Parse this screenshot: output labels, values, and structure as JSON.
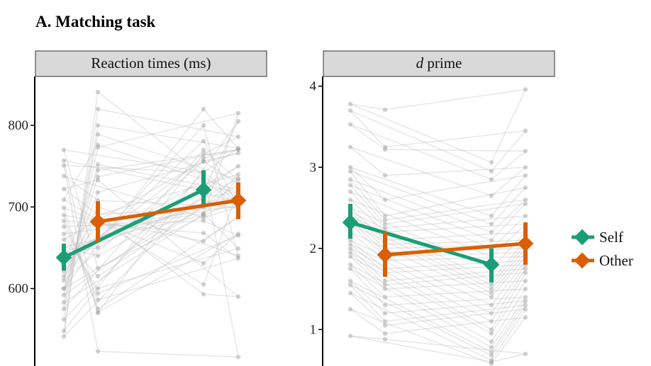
{
  "figure": {
    "title": "A. Matching task"
  },
  "colors": {
    "self": "#1b9e77",
    "other": "#d95f02",
    "individual_lines": "#bdbdbd",
    "individual_points": "#9e9e9e",
    "strip_fill": "#d9d9d9"
  },
  "legend": {
    "items": [
      {
        "label": "Self",
        "color": "#1b9e77"
      },
      {
        "label": "Other",
        "color": "#d95f02"
      }
    ]
  },
  "chart_data": [
    {
      "type": "line",
      "panel_title": "Reaction times (ms)",
      "ylim": [
        505,
        860
      ],
      "yticks": [
        600,
        700,
        800
      ],
      "series": [
        {
          "name": "Self",
          "x": [
            1,
            3
          ],
          "values": [
            638,
            721
          ],
          "error": [
            [
              622,
              655
            ],
            [
              700,
              745
            ]
          ]
        },
        {
          "name": "Other",
          "x": [
            2,
            4
          ],
          "values": [
            682,
            708
          ],
          "error": [
            [
              657,
              707
            ],
            [
              685,
              730
            ]
          ]
        }
      ],
      "individual_lines": [
        [
          541,
          841,
          718,
          705
        ],
        [
          548,
          820,
          765,
          786
        ],
        [
          562,
          800,
          742,
          772
        ],
        [
          575,
          789,
          770,
          733
        ],
        [
          583,
          773,
          691,
          815
        ],
        [
          592,
          752,
          712,
          718
        ],
        [
          600,
          737,
          820,
          771
        ],
        [
          610,
          718,
          756,
          766
        ],
        [
          615,
          700,
          800,
          640
        ],
        [
          621,
          691,
          781,
          700
        ],
        [
          632,
          676,
          733,
          701
        ],
        [
          638,
          663,
          705,
          712
        ],
        [
          643,
          650,
          720,
          750
        ],
        [
          651,
          640,
          690,
          735
        ],
        [
          660,
          615,
          756,
          728
        ],
        [
          667,
          600,
          692,
          649
        ],
        [
          676,
          594,
          683,
          665
        ],
        [
          683,
          586,
          668,
          637
        ],
        [
          690,
          575,
          658,
          688
        ],
        [
          699,
          571,
          631,
          667
        ],
        [
          709,
          776,
          605,
          720
        ],
        [
          722,
          733,
          593,
          590
        ],
        [
          738,
          708,
          687,
          700
        ],
        [
          751,
          523,
          742,
          516
        ],
        [
          757,
          570,
          720,
          805
        ],
        [
          770,
          625,
          743,
          710
        ],
        [
          630,
          745,
          760,
          770
        ],
        [
          600,
          690,
          700,
          740
        ]
      ]
    },
    {
      "type": "line",
      "panel_title_italic": "d",
      "panel_title_rest": " prime",
      "ylim": [
        0.55,
        4.12
      ],
      "yticks": [
        1,
        2,
        3,
        4
      ],
      "series": [
        {
          "name": "Self",
          "x": [
            1,
            3
          ],
          "values": [
            2.32,
            1.8
          ],
          "error": [
            [
              2.12,
              2.55
            ],
            [
              1.58,
              2.0
            ]
          ]
        },
        {
          "name": "Other",
          "x": [
            2,
            4
          ],
          "values": [
            1.92,
            2.06
          ],
          "error": [
            [
              1.65,
              2.2
            ],
            [
              1.8,
              2.32
            ]
          ]
        }
      ],
      "individual_lines": [
        [
          3.78,
          3.71,
          3.06,
          3.96
        ],
        [
          3.7,
          3.25,
          2.95,
          3.45
        ],
        [
          3.53,
          3.22,
          2.85,
          3.2
        ],
        [
          3.25,
          2.9,
          2.65,
          3.0
        ],
        [
          3.0,
          2.6,
          2.4,
          2.9
        ],
        [
          2.95,
          2.4,
          2.3,
          2.75
        ],
        [
          2.85,
          2.35,
          2.2,
          2.6
        ],
        [
          2.78,
          2.3,
          2.1,
          2.55
        ],
        [
          2.7,
          2.25,
          2.0,
          2.4
        ],
        [
          2.6,
          2.2,
          1.9,
          2.3
        ],
        [
          2.5,
          2.1,
          1.75,
          2.2
        ],
        [
          2.45,
          2.05,
          1.6,
          2.1
        ],
        [
          2.4,
          2.0,
          1.55,
          2.05
        ],
        [
          2.35,
          1.95,
          1.5,
          2.0
        ],
        [
          2.3,
          1.9,
          1.45,
          1.95
        ],
        [
          2.2,
          1.85,
          1.4,
          1.9
        ],
        [
          2.1,
          1.75,
          1.3,
          1.85
        ],
        [
          2.05,
          1.7,
          1.2,
          1.8
        ],
        [
          2.0,
          1.6,
          1.1,
          1.75
        ],
        [
          1.95,
          1.55,
          1.0,
          1.7
        ],
        [
          1.9,
          1.5,
          0.95,
          1.6
        ],
        [
          1.8,
          1.4,
          0.85,
          1.5
        ],
        [
          1.75,
          1.3,
          0.78,
          1.4
        ],
        [
          1.6,
          1.2,
          0.72,
          1.35
        ],
        [
          1.55,
          1.1,
          0.68,
          1.3
        ],
        [
          1.45,
          1.05,
          0.62,
          1.25
        ],
        [
          1.25,
          0.95,
          0.58,
          1.15
        ],
        [
          0.92,
          0.88,
          0.6,
          0.7
        ]
      ]
    }
  ]
}
